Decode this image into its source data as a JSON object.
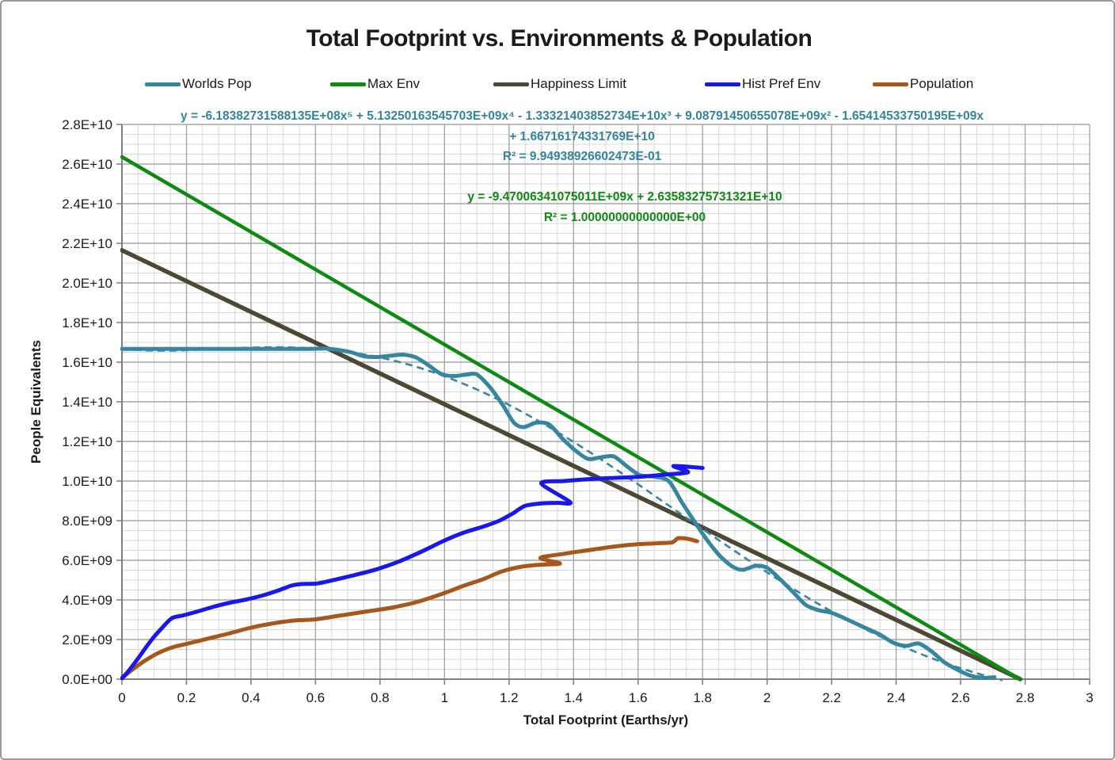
{
  "title": "Total Footprint vs. Environments & Population",
  "legend": [
    {
      "label": "Worlds Pop",
      "color": "#37869f"
    },
    {
      "label": "Max Env",
      "color": "#0d8b11"
    },
    {
      "label": "Happiness Limit",
      "color": "#4d4833"
    },
    {
      "label": "Hist Pref Env",
      "color": "#1717ee"
    },
    {
      "label": "Population",
      "color": "#a5571c"
    }
  ],
  "annotations": {
    "poly_eq_line1": "y = -6.18382731588135E+08x⁵ + 5.13250163545703E+09x⁴ - 1.33321403852734E+10x³ + 9.08791450655078E+09x² - 1.65414533750195E+09x",
    "poly_eq_line2": "+ 1.66716174331769E+10",
    "poly_eq_r2": "R² = 9.94938926602473E-01",
    "poly_eq_color": "#31859c",
    "linear_eq_line1": "y = -9.47006341075011E+09x + 2.63583275731321E+10",
    "linear_eq_r2": "R² = 1.00000000000000E+00",
    "linear_eq_color": "#0d8b11"
  },
  "axes": {
    "x_title": "Total Footprint (Earths/yr)",
    "y_title": "People Equivalents",
    "x_ticks": [
      "0",
      "0.2",
      "0.4",
      "0.6",
      "0.8",
      "1",
      "1.2",
      "1.4",
      "1.6",
      "1.8",
      "2",
      "2.2",
      "2.4",
      "2.6",
      "2.8",
      "3"
    ],
    "y_ticks": [
      "0.0E+00",
      "2.0E+09",
      "4.0E+09",
      "6.0E+09",
      "8.0E+09",
      "1.0E+10",
      "1.2E+10",
      "1.4E+10",
      "1.6E+10",
      "1.8E+10",
      "2.0E+10",
      "2.2E+10",
      "2.4E+10",
      "2.6E+10",
      "2.8E+10"
    ]
  },
  "chart_data": {
    "type": "line",
    "title": "Total Footprint vs. Environments & Population",
    "xlabel": "Total Footprint (Earths/yr)",
    "ylabel": "People Equivalents",
    "xlim": [
      0,
      3
    ],
    "ylim": [
      0,
      28000000000
    ],
    "y_unit": 1000000000,
    "grid": {
      "x_minor": 0.05,
      "x_major": 0.2,
      "y_minor_e9": 0.5,
      "y_major_e9": 2,
      "on": true
    },
    "legend_position": "top",
    "series": [
      {
        "name": "Worlds Pop",
        "color": "#37869f",
        "width": 5,
        "smooth": true,
        "points_e9": [
          [
            0,
            16.67
          ],
          [
            0.25,
            16.67
          ],
          [
            0.45,
            16.67
          ],
          [
            0.58,
            16.67
          ],
          [
            0.63,
            16.69
          ],
          [
            0.67,
            16.62
          ],
          [
            0.71,
            16.5
          ],
          [
            0.75,
            16.3
          ],
          [
            0.79,
            16.26
          ],
          [
            0.83,
            16.32
          ],
          [
            0.87,
            16.38
          ],
          [
            0.91,
            16.25
          ],
          [
            0.95,
            15.85
          ],
          [
            0.99,
            15.4
          ],
          [
            1.03,
            15.3
          ],
          [
            1.07,
            15.38
          ],
          [
            1.1,
            15.38
          ],
          [
            1.14,
            14.75
          ],
          [
            1.18,
            13.85
          ],
          [
            1.215,
            12.95
          ],
          [
            1.245,
            12.72
          ],
          [
            1.285,
            12.95
          ],
          [
            1.325,
            12.85
          ],
          [
            1.365,
            12.15
          ],
          [
            1.405,
            11.55
          ],
          [
            1.445,
            11.12
          ],
          [
            1.485,
            11.2
          ],
          [
            1.525,
            11.24
          ],
          [
            1.565,
            10.75
          ],
          [
            1.605,
            10.3
          ],
          [
            1.65,
            10.22
          ],
          [
            1.695,
            10.0
          ],
          [
            1.735,
            8.95
          ],
          [
            1.775,
            7.95
          ],
          [
            1.815,
            7.0
          ],
          [
            1.855,
            6.2
          ],
          [
            1.895,
            5.66
          ],
          [
            1.925,
            5.52
          ],
          [
            1.965,
            5.72
          ],
          [
            2.0,
            5.62
          ],
          [
            2.04,
            5.05
          ],
          [
            2.08,
            4.4
          ],
          [
            2.12,
            3.75
          ],
          [
            2.16,
            3.48
          ],
          [
            2.2,
            3.35
          ],
          [
            2.25,
            3.0
          ],
          [
            2.3,
            2.62
          ],
          [
            2.35,
            2.25
          ],
          [
            2.39,
            1.85
          ],
          [
            2.43,
            1.68
          ],
          [
            2.47,
            1.8
          ],
          [
            2.51,
            1.4
          ],
          [
            2.55,
            0.85
          ],
          [
            2.59,
            0.48
          ],
          [
            2.63,
            0.18
          ],
          [
            2.67,
            0.07
          ],
          [
            2.705,
            0.1
          ]
        ]
      },
      {
        "name": "Max Env",
        "color": "#0d8b11",
        "width": 4.5,
        "smooth": false,
        "points_e9": [
          [
            0,
            26.3583
          ],
          [
            2.7833,
            0
          ]
        ]
      },
      {
        "name": "Happiness Limit",
        "color": "#4d4833",
        "width": 5.5,
        "smooth": false,
        "points_e9": [
          [
            0,
            21.65
          ],
          [
            2.785,
            0
          ]
        ]
      },
      {
        "name": "Hist Pref Env",
        "color": "#1717ee",
        "width": 5,
        "smooth": true,
        "points_e9": [
          [
            0,
            0.05
          ],
          [
            0.02,
            0.4
          ],
          [
            0.05,
            1.05
          ],
          [
            0.09,
            1.95
          ],
          [
            0.125,
            2.6
          ],
          [
            0.155,
            3.08
          ],
          [
            0.19,
            3.22
          ],
          [
            0.235,
            3.42
          ],
          [
            0.285,
            3.66
          ],
          [
            0.335,
            3.86
          ],
          [
            0.385,
            4.02
          ],
          [
            0.435,
            4.22
          ],
          [
            0.485,
            4.48
          ],
          [
            0.525,
            4.72
          ],
          [
            0.555,
            4.8
          ],
          [
            0.605,
            4.83
          ],
          [
            0.655,
            5.0
          ],
          [
            0.72,
            5.25
          ],
          [
            0.79,
            5.55
          ],
          [
            0.86,
            5.95
          ],
          [
            0.93,
            6.45
          ],
          [
            1.0,
            7.0
          ],
          [
            1.06,
            7.4
          ],
          [
            1.12,
            7.7
          ],
          [
            1.17,
            8.0
          ],
          [
            1.21,
            8.35
          ],
          [
            1.25,
            8.75
          ],
          [
            1.3,
            8.87
          ],
          [
            1.35,
            8.9
          ],
          [
            1.39,
            8.93
          ],
          [
            1.3,
            9.88
          ],
          [
            1.37,
            10.0
          ],
          [
            1.45,
            10.1
          ],
          [
            1.53,
            10.16
          ],
          [
            1.61,
            10.22
          ],
          [
            1.68,
            10.32
          ],
          [
            1.755,
            10.45
          ],
          [
            1.71,
            10.76
          ],
          [
            1.8,
            10.66
          ]
        ]
      },
      {
        "name": "Population",
        "color": "#a5571c",
        "width": 5,
        "smooth": true,
        "points_e9": [
          [
            0,
            0.05
          ],
          [
            0.03,
            0.45
          ],
          [
            0.07,
            0.92
          ],
          [
            0.11,
            1.3
          ],
          [
            0.155,
            1.6
          ],
          [
            0.2,
            1.78
          ],
          [
            0.26,
            2.02
          ],
          [
            0.33,
            2.3
          ],
          [
            0.4,
            2.6
          ],
          [
            0.47,
            2.82
          ],
          [
            0.535,
            2.96
          ],
          [
            0.6,
            3.02
          ],
          [
            0.68,
            3.22
          ],
          [
            0.76,
            3.42
          ],
          [
            0.84,
            3.62
          ],
          [
            0.92,
            3.92
          ],
          [
            1.0,
            4.35
          ],
          [
            1.06,
            4.72
          ],
          [
            1.12,
            5.05
          ],
          [
            1.18,
            5.45
          ],
          [
            1.24,
            5.68
          ],
          [
            1.3,
            5.78
          ],
          [
            1.358,
            5.84
          ],
          [
            1.297,
            6.12
          ],
          [
            1.37,
            6.33
          ],
          [
            1.45,
            6.52
          ],
          [
            1.52,
            6.68
          ],
          [
            1.59,
            6.8
          ],
          [
            1.66,
            6.86
          ],
          [
            1.705,
            6.9
          ],
          [
            1.725,
            7.12
          ],
          [
            1.755,
            7.08
          ],
          [
            1.783,
            6.96
          ]
        ]
      }
    ],
    "trendline": {
      "for_series": "Worlds Pop",
      "color": "#37869f",
      "dashed": true,
      "degree": 5,
      "coefficients_e9_high_to_low": [
        -0.618382731588135,
        5.13250163545703,
        -13.3321403852734,
        9.08791450655078,
        -1.65414533750195,
        16.6716174331769
      ],
      "x_range": [
        0,
        2.73
      ],
      "r2": 0.994938926602473
    }
  }
}
